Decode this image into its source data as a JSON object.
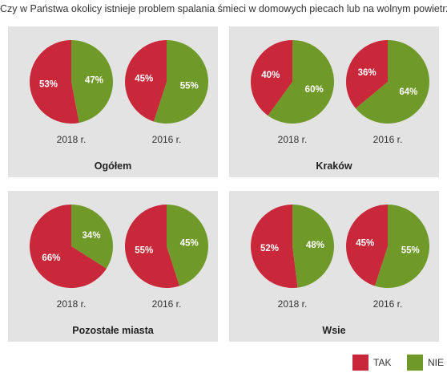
{
  "title": "Czy w Państwa okolicy istnieje problem spalania śmieci w domowych piecach lub na wolnym powietrzu?",
  "colors": {
    "tak": "#c8283a",
    "nie": "#6f9a2a",
    "panel_bg": "#e3e3e3"
  },
  "legend": [
    {
      "label": "TAK",
      "color": "#c8283a"
    },
    {
      "label": "NIE",
      "color": "#6f9a2a"
    }
  ],
  "chart_data": [
    {
      "type": "pie",
      "title": "Ogółem",
      "pies": [
        {
          "label": "2018 r.",
          "slices": [
            {
              "name": "TAK",
              "value": 53,
              "label": "53%"
            },
            {
              "name": "NIE",
              "value": 47,
              "label": "47%"
            }
          ]
        },
        {
          "label": "2016 r.",
          "slices": [
            {
              "name": "TAK",
              "value": 45,
              "label": "45%"
            },
            {
              "name": "NIE",
              "value": 55,
              "label": "55%"
            }
          ]
        }
      ]
    },
    {
      "type": "pie",
      "title": "Kraków",
      "pies": [
        {
          "label": "2018 r.",
          "slices": [
            {
              "name": "TAK",
              "value": 40,
              "label": "40%"
            },
            {
              "name": "NIE",
              "value": 60,
              "label": "60%"
            }
          ]
        },
        {
          "label": "2016 r.",
          "slices": [
            {
              "name": "TAK",
              "value": 36,
              "label": "36%"
            },
            {
              "name": "NIE",
              "value": 64,
              "label": "64%"
            }
          ]
        }
      ]
    },
    {
      "type": "pie",
      "title": "Pozostałe miasta",
      "pies": [
        {
          "label": "2018 r.",
          "slices": [
            {
              "name": "TAK",
              "value": 66,
              "label": "66%"
            },
            {
              "name": "NIE",
              "value": 34,
              "label": "34%"
            }
          ]
        },
        {
          "label": "2016 r.",
          "slices": [
            {
              "name": "TAK",
              "value": 55,
              "label": "55%"
            },
            {
              "name": "NIE",
              "value": 45,
              "label": "45%"
            }
          ]
        }
      ]
    },
    {
      "type": "pie",
      "title": "Wsie",
      "pies": [
        {
          "label": "2018 r.",
          "slices": [
            {
              "name": "TAK",
              "value": 52,
              "label": "52%"
            },
            {
              "name": "NIE",
              "value": 48,
              "label": "48%"
            }
          ]
        },
        {
          "label": "2016 r.",
          "slices": [
            {
              "name": "TAK",
              "value": 45,
              "label": "45%"
            },
            {
              "name": "NIE",
              "value": 55,
              "label": "55%"
            }
          ]
        }
      ]
    }
  ]
}
